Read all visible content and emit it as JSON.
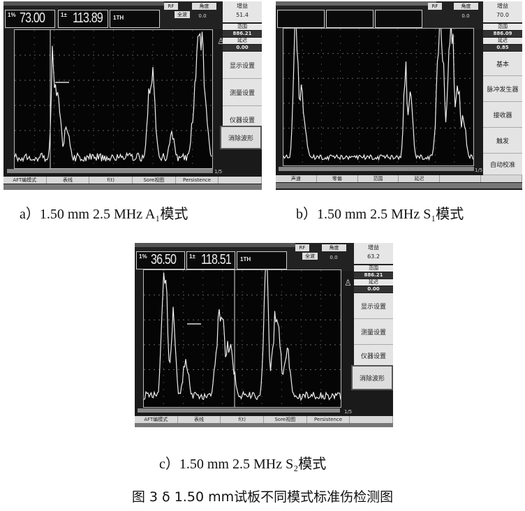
{
  "panels": {
    "a": {
      "readout1_prefix": "1%",
      "readout1": "73.00",
      "readout2_prefix": "1±",
      "readout2": "113.89",
      "readout3": "1TH",
      "chip1": "RF",
      "chip2": "角度",
      "chip3": "全波",
      "chip4": "0.0",
      "gain_label": "增益",
      "gain_value": "51.4",
      "range_label": "范围",
      "range_value": "886.21",
      "delay_label": "延迟",
      "delay_value": "0.00",
      "page": "1/5",
      "menu": [
        "显示设置",
        "测量设置",
        "仪器设置",
        "消除波形"
      ],
      "bottom": [
        "AFT编模式",
        "表线",
        "f(t)",
        "Sore视图",
        "Persistence"
      ]
    },
    "b": {
      "chip1": "RF",
      "chip2": "角度",
      "chip4": "0.0",
      "gain_label": "增益",
      "gain_value": "70.0",
      "range_label": "范围",
      "range_value": "886.09",
      "delay_label": "延迟",
      "delay_value": "0.85",
      "page": "1/5",
      "menu": [
        "基本",
        "脉冲发生器",
        "接收器",
        "触发",
        "自动校准"
      ],
      "bottom": [
        "声速",
        "零偏",
        "范围",
        "延迟",
        "",
        ""
      ]
    },
    "c": {
      "readout1_prefix": "1%",
      "readout1": "36.50",
      "readout2_prefix": "1±",
      "readout2": "118.51",
      "readout3": "1TH",
      "chip1": "RF",
      "chip2": "角度",
      "chip3": "全波",
      "chip4": "0.0",
      "gain_label": "增益",
      "gain_value": "63.2",
      "range_label": "范围",
      "range_value": "886.21",
      "delay_label": "延迟",
      "delay_value": "0.00",
      "page": "1/5",
      "menu": [
        "显示设置",
        "测量设置",
        "仪器设置",
        "消除波形"
      ],
      "bottom": [
        "AFT编模式",
        "表线",
        "f(t)",
        "Sore视图",
        "Persistence"
      ]
    }
  },
  "captions": {
    "a": "a）1.50 mm 2.5 MHz  A₁模式",
    "b": "b）1.50 mm 2.5 MHz  S₁模式",
    "c": "c）1.50 mm 2.5 MHz  S₂模式"
  },
  "figure_title": "图 3  δ 1.50 mm试板不同模式标准伤检测图"
}
